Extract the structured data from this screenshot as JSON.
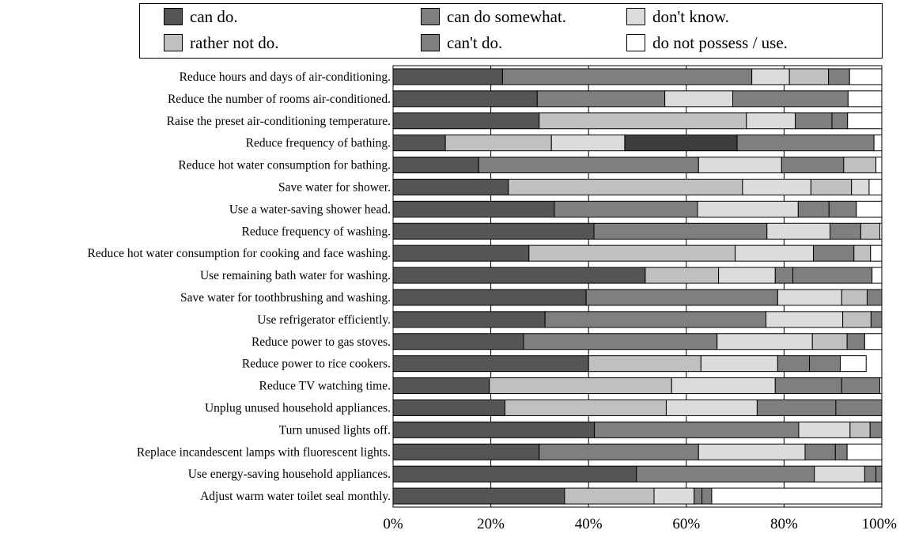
{
  "chart_data": {
    "type": "bar",
    "orientation": "horizontal",
    "stacked": true,
    "legend_position": "top",
    "grid": true,
    "xlim": [
      0,
      100
    ],
    "x_ticks": [
      "0%",
      "20%",
      "40%",
      "60%",
      "80%",
      "100%"
    ],
    "colors": [
      "#555555",
      "#7f7f7f",
      "#dcdcdc",
      "#c0c0c0",
      "#7f7f7f",
      "#ffffff"
    ],
    "highlight_color": "#3c3c3c",
    "legend": [
      {
        "label": "can do.",
        "color": "#555555"
      },
      {
        "label": "can do somewhat.",
        "color": "#7f7f7f"
      },
      {
        "label": "don't know.",
        "color": "#dcdcdc"
      },
      {
        "label": "rather not do.",
        "color": "#c0c0c0"
      },
      {
        "label": "can't do.",
        "color": "#7f7f7f"
      },
      {
        "label": "do not possess / use.",
        "color": "#ffffff"
      }
    ],
    "categories": [
      "Reduce hours and days of air-conditioning.",
      "Reduce the number of rooms air-conditioned.",
      "Raise the preset air-conditioning temperature.",
      "Reduce frequency of bathing.",
      "Reduce hot water consumption for bathing.",
      "Save water for shower.",
      "Use a water-saving shower head.",
      "Reduce frequency of washing.",
      "Reduce hot water consumption for cooking and face washing.",
      "Use remaining bath water for washing.",
      "Save water for toothbrushing and washing.",
      "Use refrigerator efficiently.",
      "Reduce power to gas stoves.",
      "Reduce power to rice cookers.",
      "Reduce TV watching time.",
      "Unplug unused household appliances.",
      "Turn unused lights off.",
      "Replace incandescent lamps with fluorescent lights.",
      "Use energy-saving household appliances.",
      "Adjust warm water toilet seal monthly."
    ],
    "rows": [
      [
        {
          "v": 22.4,
          "c": 0
        },
        {
          "v": 51.0,
          "c": 1
        },
        {
          "v": 7.7,
          "c": 2
        },
        {
          "v": 8.0,
          "c": 3
        },
        {
          "v": 4.3,
          "c": 4
        },
        {
          "v": 6.6,
          "c": 5
        }
      ],
      [
        {
          "v": 29.5,
          "c": 0
        },
        {
          "v": 26.1,
          "c": 1
        },
        {
          "v": 13.9,
          "c": 2
        },
        {
          "v": 23.6,
          "c": 4
        },
        {
          "v": 6.9,
          "c": 5
        }
      ],
      [
        {
          "v": 29.9,
          "c": 0
        },
        {
          "v": 42.4,
          "c": 3
        },
        {
          "v": 10.0,
          "c": 2
        },
        {
          "v": 7.5,
          "c": 1
        },
        {
          "v": 3.2,
          "c": 4
        },
        {
          "v": 7.0,
          "c": 5
        }
      ],
      [
        {
          "v": 10.7,
          "c": 0
        },
        {
          "v": 21.7,
          "c": 3
        },
        {
          "v": 15.0,
          "c": 2
        },
        {
          "v": 23.0,
          "c": "highlight"
        },
        {
          "v": 28.0,
          "c": 4
        },
        {
          "v": 1.6,
          "c": 5
        }
      ],
      [
        {
          "v": 17.5,
          "c": 0
        },
        {
          "v": 45.0,
          "c": 1
        },
        {
          "v": 17.0,
          "c": 2
        },
        {
          "v": 12.7,
          "c": 4
        },
        {
          "v": 6.6,
          "c": 3
        },
        {
          "v": 1.2,
          "c": 5
        }
      ],
      [
        {
          "v": 23.6,
          "c": 0
        },
        {
          "v": 47.9,
          "c": 3
        },
        {
          "v": 14.0,
          "c": 2
        },
        {
          "v": 8.3,
          "c": 3
        },
        {
          "v": 3.6,
          "c": 2
        },
        {
          "v": 2.6,
          "c": 5
        }
      ],
      [
        {
          "v": 33.0,
          "c": 0
        },
        {
          "v": 29.3,
          "c": 1
        },
        {
          "v": 20.6,
          "c": 2
        },
        {
          "v": 6.3,
          "c": 1
        },
        {
          "v": 5.6,
          "c": 4
        },
        {
          "v": 5.2,
          "c": 5
        }
      ],
      [
        {
          "v": 41.1,
          "c": 0
        },
        {
          "v": 35.4,
          "c": 1
        },
        {
          "v": 12.9,
          "c": 2
        },
        {
          "v": 6.3,
          "c": 4
        },
        {
          "v": 3.9,
          "c": 3
        },
        {
          "v": 0.4,
          "c": 5
        }
      ],
      [
        {
          "v": 27.8,
          "c": 0
        },
        {
          "v": 42.2,
          "c": 3
        },
        {
          "v": 16.0,
          "c": 2
        },
        {
          "v": 8.3,
          "c": 4
        },
        {
          "v": 3.4,
          "c": 3
        },
        {
          "v": 2.3,
          "c": 5
        }
      ],
      [
        {
          "v": 51.6,
          "c": 0
        },
        {
          "v": 15.0,
          "c": 3
        },
        {
          "v": 11.6,
          "c": 2
        },
        {
          "v": 3.6,
          "c": 1
        },
        {
          "v": 16.2,
          "c": 4
        },
        {
          "v": 2.0,
          "c": 5
        }
      ],
      [
        {
          "v": 39.5,
          "c": 0
        },
        {
          "v": 39.2,
          "c": 1
        },
        {
          "v": 13.1,
          "c": 2
        },
        {
          "v": 5.2,
          "c": 3
        },
        {
          "v": 3.0,
          "c": 4
        }
      ],
      [
        {
          "v": 31.1,
          "c": 0
        },
        {
          "v": 45.2,
          "c": 1
        },
        {
          "v": 15.7,
          "c": 2
        },
        {
          "v": 5.8,
          "c": 3
        },
        {
          "v": 2.2,
          "c": 4
        }
      ],
      [
        {
          "v": 26.7,
          "c": 0
        },
        {
          "v": 39.6,
          "c": 1
        },
        {
          "v": 19.5,
          "c": 2
        },
        {
          "v": 7.1,
          "c": 3
        },
        {
          "v": 3.6,
          "c": 4
        },
        {
          "v": 3.5,
          "c": 5
        }
      ],
      [
        {
          "v": 40.0,
          "c": 0
        },
        {
          "v": 23.0,
          "c": 3
        },
        {
          "v": 15.7,
          "c": 2
        },
        {
          "v": 6.5,
          "c": 1
        },
        {
          "v": 6.3,
          "c": 4
        },
        {
          "v": 5.3,
          "c": 5
        }
      ],
      [
        {
          "v": 19.7,
          "c": 0
        },
        {
          "v": 37.3,
          "c": 3
        },
        {
          "v": 21.2,
          "c": 2
        },
        {
          "v": 13.6,
          "c": 1
        },
        {
          "v": 7.8,
          "c": 4
        },
        {
          "v": 0.4,
          "c": 5
        }
      ],
      [
        {
          "v": 22.9,
          "c": 0
        },
        {
          "v": 33.0,
          "c": 3
        },
        {
          "v": 18.6,
          "c": 2
        },
        {
          "v": 16.1,
          "c": 1
        },
        {
          "v": 9.4,
          "c": 4
        }
      ],
      [
        {
          "v": 41.2,
          "c": 0
        },
        {
          "v": 41.8,
          "c": 1
        },
        {
          "v": 10.5,
          "c": 2
        },
        {
          "v": 4.1,
          "c": 3
        },
        {
          "v": 2.4,
          "c": 4
        }
      ],
      [
        {
          "v": 29.9,
          "c": 0
        },
        {
          "v": 32.6,
          "c": 1
        },
        {
          "v": 21.8,
          "c": 2
        },
        {
          "v": 6.2,
          "c": 1
        },
        {
          "v": 2.4,
          "c": 4
        },
        {
          "v": 7.1,
          "c": 5
        }
      ],
      [
        {
          "v": 49.8,
          "c": 0
        },
        {
          "v": 36.4,
          "c": 1
        },
        {
          "v": 10.3,
          "c": 2
        },
        {
          "v": 2.3,
          "c": 4
        },
        {
          "v": 1.2,
          "c": 4
        }
      ],
      [
        {
          "v": 35.1,
          "c": 0
        },
        {
          "v": 18.3,
          "c": 3
        },
        {
          "v": 8.2,
          "c": 2
        },
        {
          "v": 1.6,
          "c": 1
        },
        {
          "v": 2.0,
          "c": 4
        },
        {
          "v": 34.8,
          "c": 5
        }
      ]
    ]
  }
}
